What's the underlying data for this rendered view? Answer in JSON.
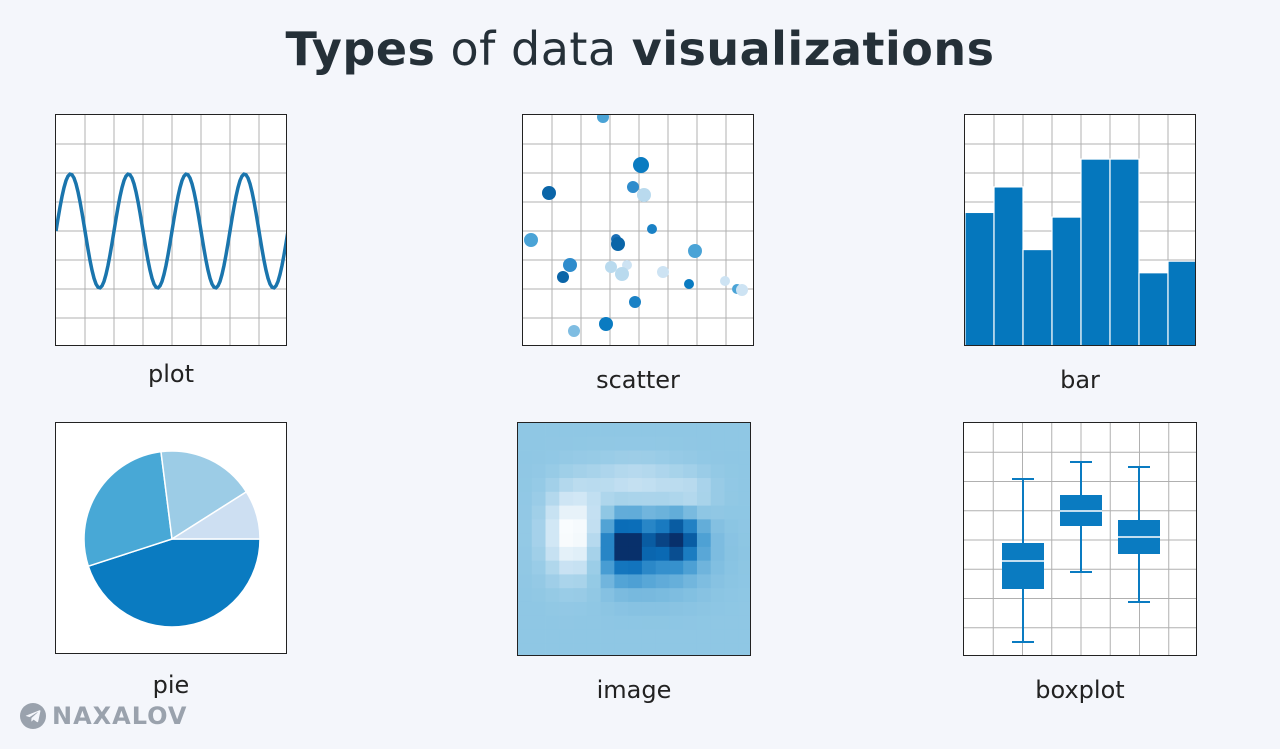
{
  "title": {
    "part1": "Types",
    "part2": " of data ",
    "part3": "visualizations"
  },
  "charts": {
    "plot": {
      "caption": "plot",
      "color": "#1a75ad"
    },
    "scatter": {
      "caption": "scatter"
    },
    "bar": {
      "caption": "bar",
      "color": "#0577bd",
      "values": [
        5.8,
        6.9,
        4.2,
        5.6,
        8.1,
        8.1,
        3.2,
        3.7
      ],
      "ylim": [
        0,
        10
      ]
    },
    "pie": {
      "caption": "pie",
      "slices": [
        {
          "value": 45,
          "color": "#0a7bc1"
        },
        {
          "value": 28,
          "color": "#48a8d6"
        },
        {
          "value": 18,
          "color": "#9ccce6"
        },
        {
          "value": 9,
          "color": "#cddff2"
        }
      ]
    },
    "image": {
      "caption": "image"
    },
    "boxplot": {
      "caption": "boxplot",
      "color": "#0a7bc1"
    }
  },
  "brand": {
    "name": "NAXALOV",
    "icon": "telegram-icon"
  }
}
